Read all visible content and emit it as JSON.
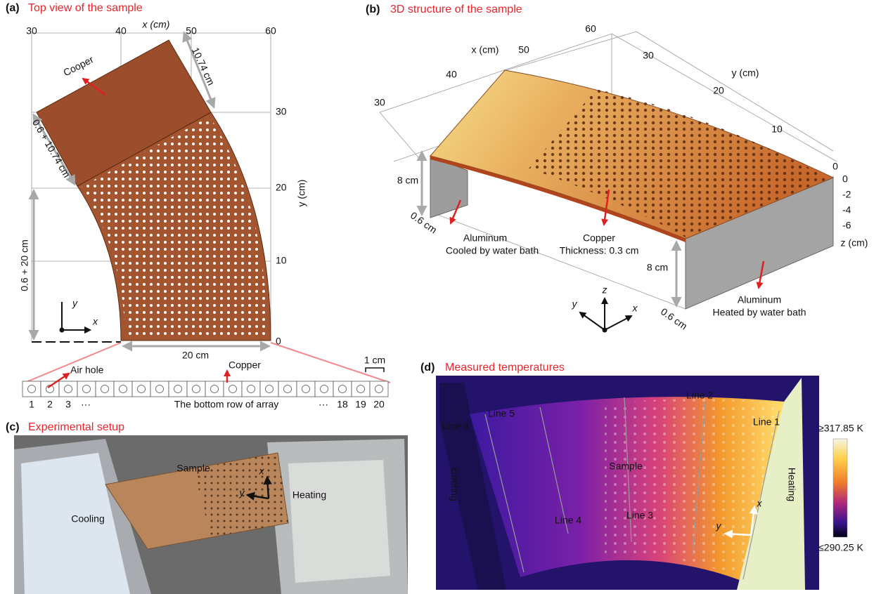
{
  "panel_a": {
    "label": "(a)",
    "title": "Top view of the sample",
    "x_axis_label": "x (cm)",
    "x_ticks": [
      "30",
      "40",
      "50",
      "60"
    ],
    "y_axis_label": "y (cm)",
    "y_ticks": [
      "0",
      "10",
      "20",
      "30"
    ],
    "material": "Cooper",
    "dims": [
      "10.74 cm",
      "0.6 + 10.74 cm",
      "0.6 + 20 cm",
      "20 cm"
    ],
    "axes": [
      "y",
      "x"
    ],
    "bottom_row": {
      "scale": "1 cm",
      "air_hole": "Air hole",
      "copper": "Copper",
      "indices": [
        "1",
        "2",
        "3",
        "···",
        "···",
        "18",
        "19",
        "20"
      ],
      "caption": "The bottom row of array"
    }
  },
  "panel_b": {
    "label": "(b)",
    "title": "3D structure of the sample",
    "x_axis_label": "x (cm)",
    "x_ticks": [
      "30",
      "40",
      "50",
      "60"
    ],
    "y_axis_label": "y (cm)",
    "y_ticks": [
      "30",
      "20",
      "10",
      "0"
    ],
    "z_axis_label": "z (cm)",
    "z_ticks": [
      "0",
      "-2",
      "-4",
      "-6"
    ],
    "dims": [
      "8 cm",
      "0.6 cm",
      "8 cm",
      "0.6 cm"
    ],
    "left_wall": [
      "Aluminum",
      "Cooled by water bath"
    ],
    "plate": [
      "Copper",
      "Thickness: 0.3 cm"
    ],
    "right_wall": [
      "Aluminum",
      "Heated by water bath"
    ],
    "axes": [
      "z",
      "y",
      "x"
    ]
  },
  "panel_c": {
    "label": "(c)",
    "title": "Experimental setup",
    "texts": [
      "Sample",
      "Heating",
      "Cooling"
    ],
    "axes": [
      "x",
      "y"
    ]
  },
  "panel_d": {
    "label": "(d)",
    "title": "Measured temperatures",
    "lines": [
      "Line 1",
      "Line 2",
      "Line 3",
      "Line 4",
      "Line 5",
      "Line 6"
    ],
    "texts": [
      "Sample",
      "Cooling",
      "Heating"
    ],
    "axes": [
      "x",
      "y"
    ],
    "colorbar": [
      "≥317.85 K",
      "≤290.25 K"
    ]
  }
}
